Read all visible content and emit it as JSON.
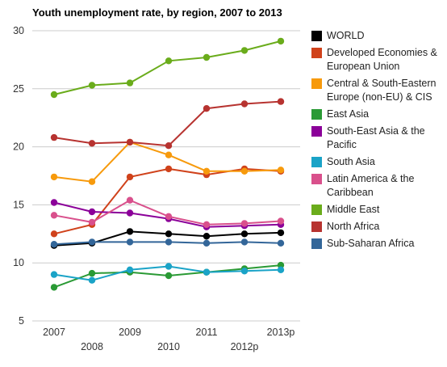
{
  "chart_data": {
    "type": "line",
    "title": "Youth unemployment rate, by region, 2007 to 2013",
    "xlabel": "",
    "ylabel": "",
    "categories": [
      "2007",
      "2008",
      "2009",
      "2010",
      "2011",
      "2012p",
      "2013p"
    ],
    "ylim": [
      5,
      30
    ],
    "yticks": [
      "5",
      "10",
      "15",
      "20",
      "25",
      "30"
    ],
    "grid": true,
    "legend_position": "right",
    "series": [
      {
        "name": "WORLD",
        "color": "#000000",
        "values": [
          11.5,
          11.7,
          12.7,
          12.5,
          12.3,
          12.5,
          12.6
        ]
      },
      {
        "name": "Developed Economies & European Union",
        "color": "#d0421b",
        "values": [
          12.5,
          13.3,
          17.4,
          18.1,
          17.6,
          18.1,
          17.9
        ]
      },
      {
        "name": "Central & South-Eastern Europe (non-EU) & CIS",
        "color": "#f79a0c",
        "values": [
          17.4,
          17.0,
          20.4,
          19.3,
          17.9,
          17.9,
          18.0
        ]
      },
      {
        "name": "East Asia",
        "color": "#2a9a35",
        "values": [
          7.9,
          9.1,
          9.2,
          8.9,
          9.2,
          9.5,
          9.8
        ]
      },
      {
        "name": "South-East Asia & the Pacific",
        "color": "#8b0099",
        "values": [
          15.2,
          14.4,
          14.3,
          13.8,
          13.1,
          13.2,
          13.3
        ]
      },
      {
        "name": "South Asia",
        "color": "#1aa3c7",
        "values": [
          9.0,
          8.5,
          9.4,
          9.7,
          9.2,
          9.3,
          9.4
        ]
      },
      {
        "name": "Latin America & the Caribbean",
        "color": "#d9508c",
        "values": [
          14.1,
          13.5,
          15.4,
          14.0,
          13.3,
          13.4,
          13.6
        ]
      },
      {
        "name": "Middle East",
        "color": "#6aac1b",
        "values": [
          24.5,
          25.3,
          25.5,
          27.4,
          27.7,
          28.3,
          29.1
        ]
      },
      {
        "name": "North Africa",
        "color": "#b73330",
        "values": [
          20.8,
          20.3,
          20.4,
          20.1,
          23.3,
          23.7,
          23.9
        ]
      },
      {
        "name": "Sub-Saharan Africa",
        "color": "#336699",
        "values": [
          11.6,
          11.8,
          11.8,
          11.8,
          11.7,
          11.8,
          11.7
        ]
      }
    ]
  }
}
